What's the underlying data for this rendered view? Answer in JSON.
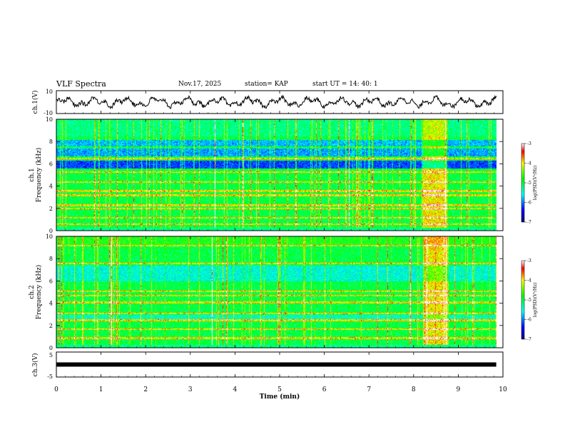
{
  "header": {
    "title": "VLF Spectra",
    "date": "Nov.17, 2025",
    "station": "station= KAP",
    "start_ut": "start  UT =   14: 40: 1"
  },
  "chart_data": [
    {
      "type": "line",
      "id": "ch1-waveform",
      "ylabel": "ch.1(V)",
      "ylim": [
        -10,
        10
      ],
      "yticks": [
        "10",
        "-10"
      ],
      "xlim": [
        0,
        10
      ]
    },
    {
      "type": "heatmap",
      "id": "ch1-spectrogram",
      "ylabel": "ch.1\nFrequency (kHz)",
      "ylabel_lines": [
        "ch.1",
        "Frequency (kHz)"
      ],
      "ylim": [
        0,
        10
      ],
      "yticks": [
        "0",
        "2",
        "4",
        "6",
        "8",
        "10"
      ],
      "xlim": [
        0,
        10
      ],
      "colorbar": {
        "label": "log(PSD)(V²/Hz)",
        "range": [
          -7,
          -3
        ],
        "ticks": [
          "-3",
          "-4",
          "-5",
          "-6",
          "-7"
        ]
      },
      "bright_segment_min": [
        8.2,
        8.75
      ],
      "strong_lines_khz": [
        0.6,
        1.2,
        2.0,
        2.3,
        3.2,
        3.6,
        4.4,
        5.3,
        6.5
      ]
    },
    {
      "type": "heatmap",
      "id": "ch2-spectrogram",
      "ylabel": "ch.2\nFrequency (kHz)",
      "ylabel_lines": [
        "ch.2",
        "Frequency (kHz)"
      ],
      "ylim": [
        0,
        10
      ],
      "yticks": [
        "0",
        "2",
        "4",
        "6",
        "8",
        "10"
      ],
      "xlim": [
        0,
        10
      ],
      "colorbar": {
        "label": "log(PSD)(V²/Hz)",
        "range": [
          -7,
          -3
        ],
        "ticks": [
          "-3",
          "-4",
          "-5",
          "-6",
          "-7"
        ]
      },
      "bright_segment_min": [
        8.2,
        8.75
      ],
      "strong_lines_khz": [
        0.9,
        1.7,
        2.5,
        3.1,
        4.1,
        4.7,
        5.1,
        7.6,
        9.2
      ]
    },
    {
      "type": "line",
      "id": "ch3-waveform",
      "ylabel": "ch.3(V)",
      "ylim": [
        -5,
        5
      ],
      "yticks": [
        "5",
        "-5"
      ],
      "xlim": [
        0,
        10
      ],
      "value": 0,
      "data_end_min": 9.85
    }
  ],
  "xaxis": {
    "label": "Time (min)",
    "ticks": [
      "0",
      "1",
      "2",
      "3",
      "4",
      "5",
      "6",
      "7",
      "8",
      "9",
      "10"
    ],
    "range": [
      0,
      10
    ]
  },
  "colors": {
    "frame": "#000000",
    "trace": "#000000"
  }
}
